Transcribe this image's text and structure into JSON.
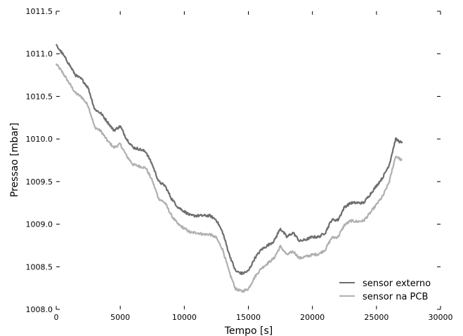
{
  "chart_data": {
    "type": "line",
    "xlabel": "Tempo [s]",
    "ylabel": "Pressao [mbar]",
    "xlim": [
      0,
      30000
    ],
    "ylim": [
      1008.0,
      1011.5
    ],
    "xticks": [
      0,
      5000,
      10000,
      15000,
      20000,
      25000,
      30000
    ],
    "xtick_labels": [
      "0",
      "5000",
      "10000",
      "15000",
      "20000",
      "25000",
      "30000"
    ],
    "yticks": [
      1008.0,
      1008.5,
      1009.0,
      1009.5,
      1010.0,
      1010.5,
      1011.0,
      1011.5
    ],
    "ytick_labels": [
      "1008.0",
      "1008.5",
      "1009.0",
      "1009.5",
      "1010.0",
      "1010.5",
      "1011.0",
      "1011.5"
    ],
    "grid": false,
    "legend_position": "bottom-right",
    "series": [
      {
        "name": "sensor externo",
        "color": "#6e6e6e",
        "x": [
          0,
          500,
          1000,
          1500,
          2000,
          2500,
          3000,
          3500,
          4000,
          4500,
          5000,
          5500,
          6000,
          6500,
          7000,
          7500,
          8000,
          8500,
          9000,
          9500,
          10000,
          10500,
          11000,
          11500,
          12000,
          12500,
          13000,
          13500,
          14000,
          14500,
          15000,
          15500,
          16000,
          16500,
          17000,
          17500,
          18000,
          18500,
          19000,
          19500,
          20000,
          20500,
          21000,
          21500,
          22000,
          22500,
          23000,
          23500,
          24000,
          24500,
          25000,
          25500,
          26000,
          26500,
          27000
        ],
        "y": [
          1011.1,
          1011.0,
          1010.88,
          1010.75,
          1010.7,
          1010.6,
          1010.35,
          1010.3,
          1010.2,
          1010.1,
          1010.15,
          1010.0,
          1009.9,
          1009.88,
          1009.85,
          1009.7,
          1009.5,
          1009.45,
          1009.3,
          1009.2,
          1009.15,
          1009.1,
          1009.1,
          1009.1,
          1009.1,
          1009.05,
          1008.9,
          1008.65,
          1008.45,
          1008.42,
          1008.45,
          1008.6,
          1008.7,
          1008.75,
          1008.8,
          1008.95,
          1008.85,
          1008.9,
          1008.8,
          1008.82,
          1008.85,
          1008.85,
          1008.9,
          1009.05,
          1009.05,
          1009.2,
          1009.25,
          1009.25,
          1009.25,
          1009.35,
          1009.45,
          1009.55,
          1009.7,
          1010.0,
          1009.95
        ]
      },
      {
        "name": "sensor na PCB",
        "color": "#b0b0b0",
        "x": [
          0,
          500,
          1000,
          1500,
          2000,
          2500,
          3000,
          3500,
          4000,
          4500,
          5000,
          5500,
          6000,
          6500,
          7000,
          7500,
          8000,
          8500,
          9000,
          9500,
          10000,
          10500,
          11000,
          11500,
          12000,
          12500,
          13000,
          13500,
          14000,
          14500,
          15000,
          15500,
          16000,
          16500,
          17000,
          17500,
          18000,
          18500,
          19000,
          19500,
          20000,
          20500,
          21000,
          21500,
          22000,
          22500,
          23000,
          23500,
          24000,
          24500,
          25000,
          25500,
          26000,
          26500,
          27000
        ],
        "y": [
          1010.88,
          1010.78,
          1010.66,
          1010.54,
          1010.49,
          1010.39,
          1010.14,
          1010.09,
          1009.98,
          1009.9,
          1009.94,
          1009.8,
          1009.7,
          1009.68,
          1009.66,
          1009.51,
          1009.3,
          1009.25,
          1009.1,
          1009.0,
          1008.95,
          1008.9,
          1008.9,
          1008.88,
          1008.88,
          1008.84,
          1008.7,
          1008.44,
          1008.24,
          1008.21,
          1008.24,
          1008.38,
          1008.48,
          1008.54,
          1008.6,
          1008.74,
          1008.64,
          1008.68,
          1008.6,
          1008.62,
          1008.64,
          1008.65,
          1008.7,
          1008.84,
          1008.85,
          1008.99,
          1009.04,
          1009.03,
          1009.04,
          1009.13,
          1009.23,
          1009.33,
          1009.5,
          1009.8,
          1009.75
        ]
      }
    ]
  }
}
